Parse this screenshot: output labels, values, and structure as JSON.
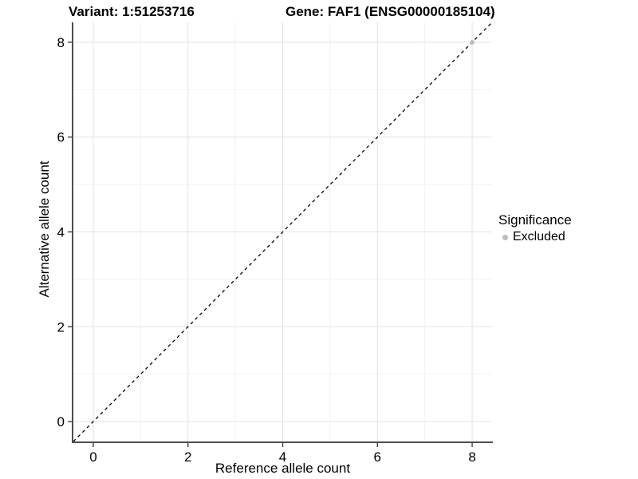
{
  "titles": {
    "variant": "Variant: 1:51253716",
    "gene": "Gene: FAF1 (ENSG00000185104)"
  },
  "axes": {
    "x_label": "Reference allele count",
    "y_label": "Alternative allele count"
  },
  "legend": {
    "title": "Significance",
    "position": "right",
    "entries": [
      {
        "label": "Excluded",
        "color": "#bebebe"
      }
    ]
  },
  "chart_data": {
    "type": "scatter",
    "title": "Variant: 1:51253716 — Gene: FAF1 (ENSG00000185104)",
    "xlabel": "Reference allele count",
    "ylabel": "Alternative allele count",
    "xlim": [
      -0.42,
      8.42
    ],
    "ylim": [
      -0.42,
      8.42
    ],
    "x_major_ticks": [
      0,
      2,
      4,
      6,
      8
    ],
    "x_minor_ticks": [
      1,
      3,
      5,
      7
    ],
    "y_major_ticks": [
      0,
      2,
      4,
      6,
      8
    ],
    "y_minor_ticks": [
      1,
      3,
      5,
      7
    ],
    "grid": {
      "on": true,
      "major_color": "#e3e3e3",
      "minor_color": "#f2f2f2"
    },
    "axis_line_color": "#4d4d4d",
    "tick_color": "#333333",
    "text_color": "#000000",
    "reference_line": {
      "type": "identity",
      "style": "dashed",
      "color": "#000000"
    },
    "series": [
      {
        "name": "Excluded",
        "color": "#bebebe",
        "points": [
          {
            "x": 8,
            "y": 8
          }
        ]
      }
    ],
    "legend_position": "right"
  }
}
